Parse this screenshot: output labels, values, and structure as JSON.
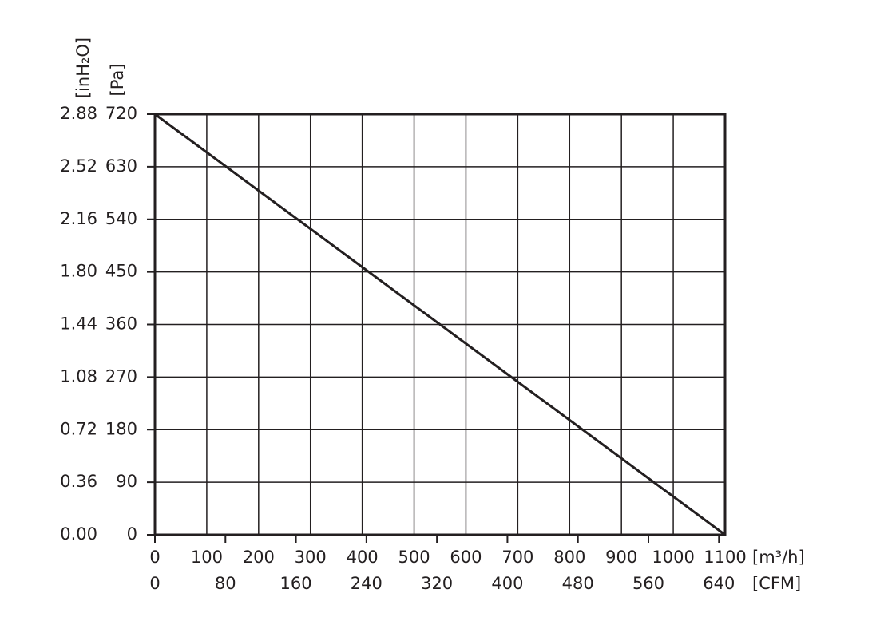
{
  "chart_data": {
    "type": "line",
    "x_label": "[m³/h]",
    "x2_label": "[CFM]",
    "y_label": "[Pa]",
    "y2_label": "[inH₂O]",
    "xlim": [
      0,
      1100
    ],
    "xticks": [
      0,
      100,
      200,
      300,
      400,
      500,
      600,
      700,
      800,
      900,
      1000,
      1100
    ],
    "x2lim": [
      0,
      647
    ],
    "x2ticks": [
      0,
      80,
      160,
      240,
      320,
      400,
      480,
      560,
      640
    ],
    "ylim": [
      0,
      720
    ],
    "yticks": [
      0,
      90,
      180,
      270,
      360,
      450,
      540,
      630,
      720
    ],
    "y2lim": [
      0,
      2.88
    ],
    "y2ticks": [
      {
        "value": 0,
        "label": "0.00"
      },
      0.36,
      0.72,
      1.08,
      1.44,
      {
        "value": 1.8,
        "label": "1.80"
      },
      2.16,
      2.52,
      2.88
    ],
    "grid": true,
    "series": [
      {
        "x": [
          0,
          1100
        ],
        "values": [
          720,
          0
        ],
        "color": "#231f20"
      }
    ]
  }
}
